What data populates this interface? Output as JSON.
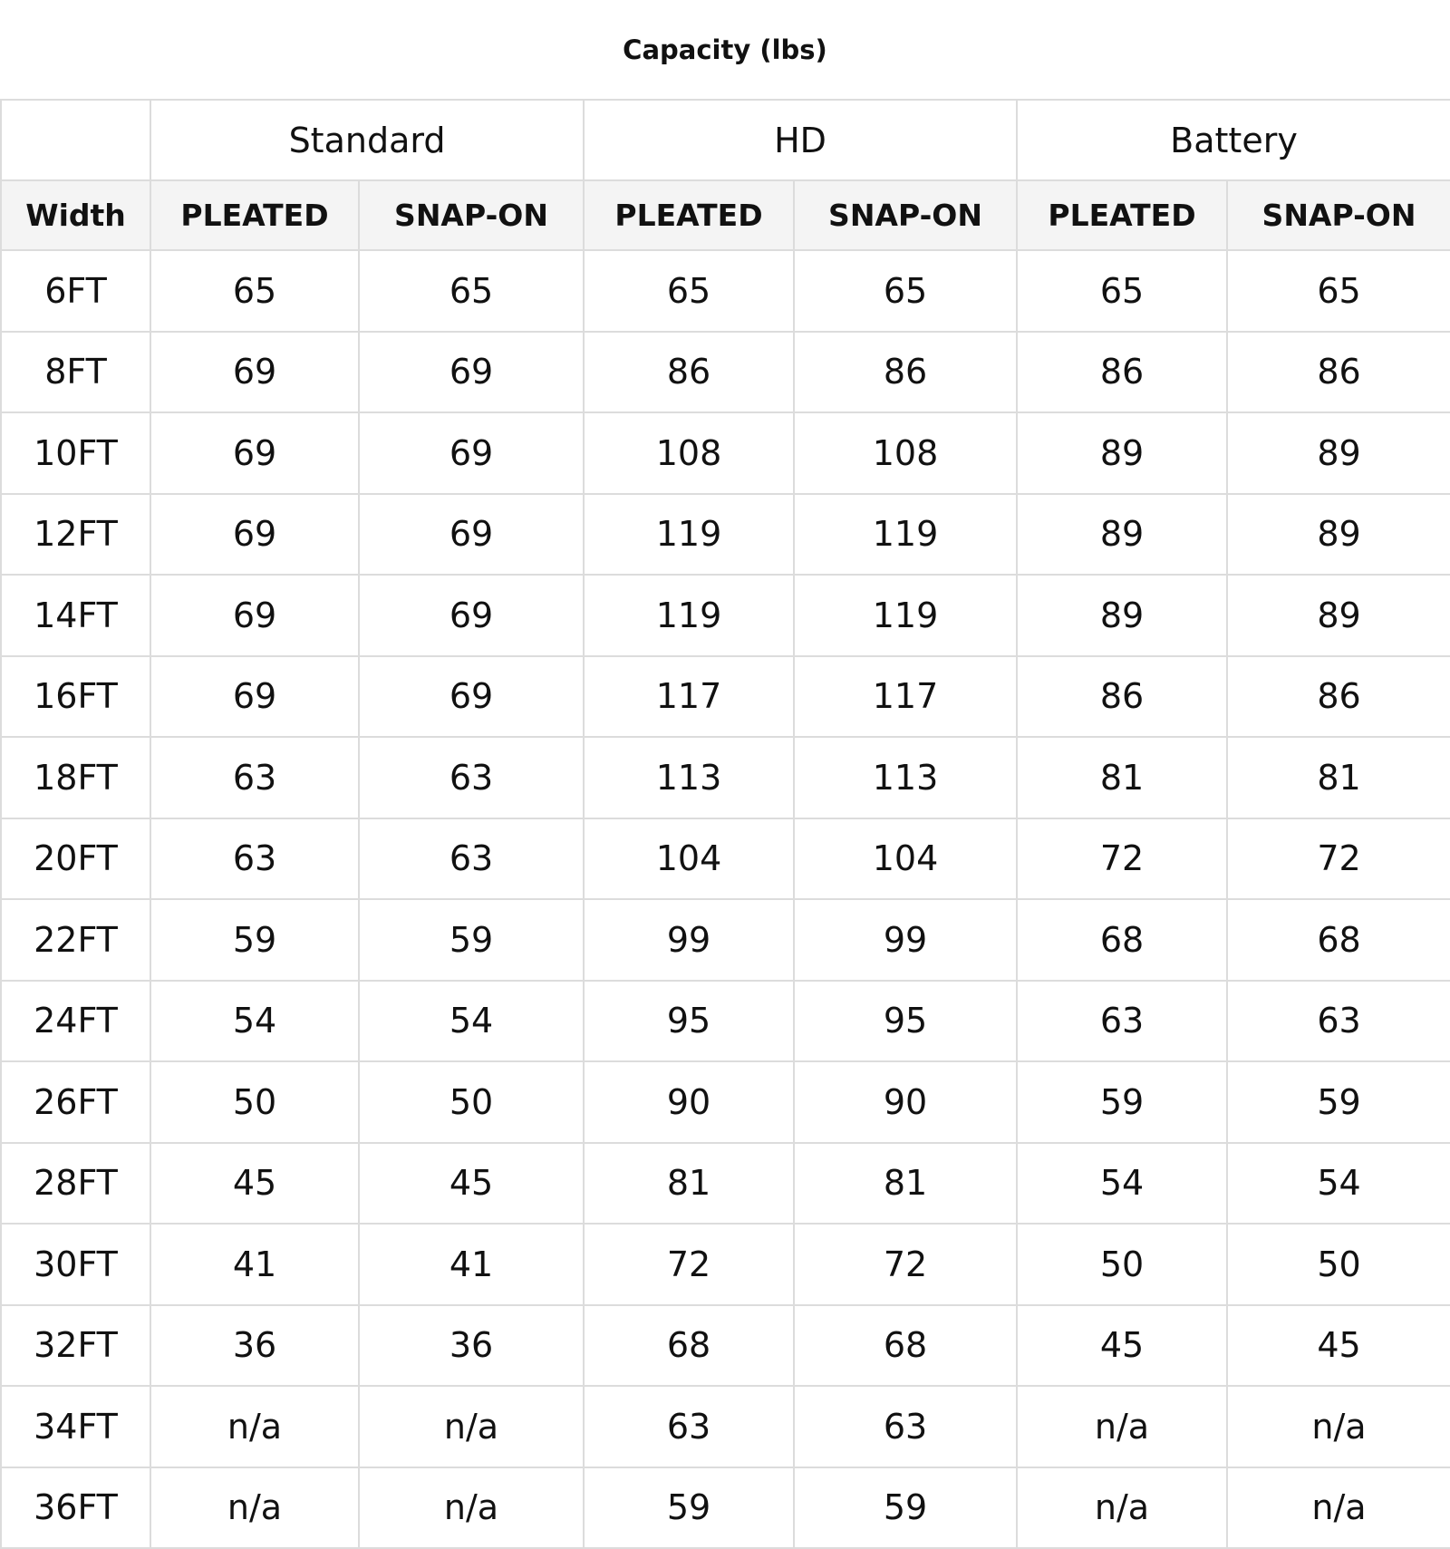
{
  "title": "Capacity (lbs)",
  "groups": [
    "Standard",
    "HD",
    "Battery"
  ],
  "columns": [
    "Width",
    "PLEATED",
    "SNAP-ON",
    "PLEATED",
    "SNAP-ON",
    "PLEATED",
    "SNAP-ON"
  ],
  "rows": [
    [
      "6FT",
      "65",
      "65",
      "65",
      "65",
      "65",
      "65"
    ],
    [
      "8FT",
      "69",
      "69",
      "86",
      "86",
      "86",
      "86"
    ],
    [
      "10FT",
      "69",
      "69",
      "108",
      "108",
      "89",
      "89"
    ],
    [
      "12FT",
      "69",
      "69",
      "119",
      "119",
      "89",
      "89"
    ],
    [
      "14FT",
      "69",
      "69",
      "119",
      "119",
      "89",
      "89"
    ],
    [
      "16FT",
      "69",
      "69",
      "117",
      "117",
      "86",
      "86"
    ],
    [
      "18FT",
      "63",
      "63",
      "113",
      "113",
      "81",
      "81"
    ],
    [
      "20FT",
      "63",
      "63",
      "104",
      "104",
      "72",
      "72"
    ],
    [
      "22FT",
      "59",
      "59",
      "99",
      "99",
      "68",
      "68"
    ],
    [
      "24FT",
      "54",
      "54",
      "95",
      "95",
      "63",
      "63"
    ],
    [
      "26FT",
      "50",
      "50",
      "90",
      "90",
      "59",
      "59"
    ],
    [
      "28FT",
      "45",
      "45",
      "81",
      "81",
      "54",
      "54"
    ],
    [
      "30FT",
      "41",
      "41",
      "72",
      "72",
      "50",
      "50"
    ],
    [
      "32FT",
      "36",
      "36",
      "68",
      "68",
      "45",
      "45"
    ],
    [
      "34FT",
      "n/a",
      "n/a",
      "63",
      "63",
      "n/a",
      "n/a"
    ],
    [
      "36FT",
      "n/a",
      "n/a",
      "59",
      "59",
      "n/a",
      "n/a"
    ]
  ]
}
